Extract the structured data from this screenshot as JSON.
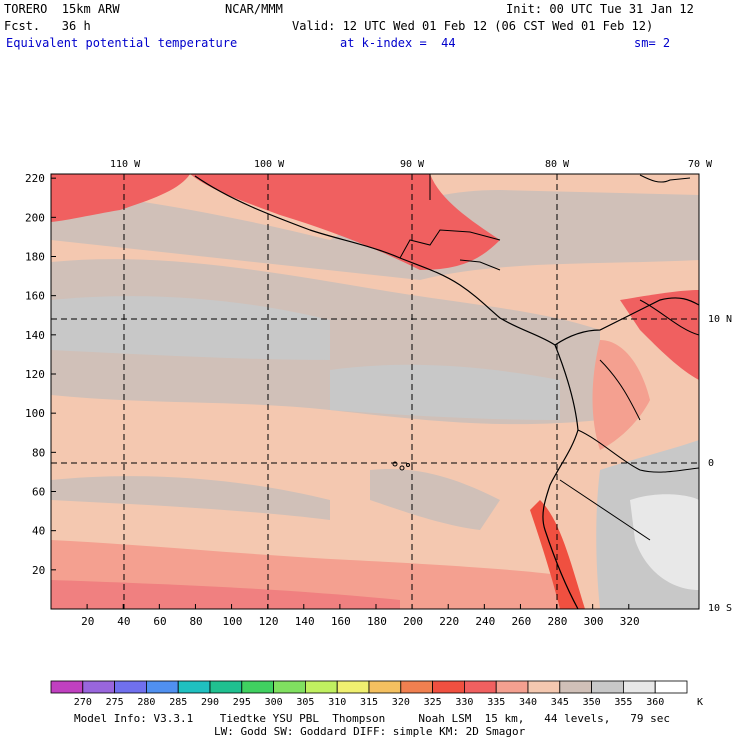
{
  "header": {
    "model": "TORERO  15km ARW",
    "org": "NCAR/MMM",
    "init": "Init: 00 UTC Tue 31 Jan 12",
    "fcst": "Fcst.   36 h",
    "valid": "Valid: 12 UTC Wed 01 Feb 12 (06 CST Wed 01 Feb 12)",
    "field": "Equivalent potential temperature",
    "level": "at k-index =  44",
    "smooth": "sm= 2"
  },
  "map": {
    "lon_labels": [
      "110 W",
      "100 W",
      "90 W",
      "80 W",
      "70 W"
    ],
    "lat_labels": [
      "10 N",
      "0",
      "10 S"
    ],
    "x_ticks": [
      "20",
      "40",
      "60",
      "80",
      "100",
      "120",
      "140",
      "160",
      "180",
      "200",
      "220",
      "240",
      "260",
      "280",
      "300",
      "320"
    ],
    "y_ticks": [
      "20",
      "40",
      "60",
      "80",
      "100",
      "120",
      "140",
      "160",
      "180",
      "200",
      "220"
    ]
  },
  "colorbar": {
    "labels": [
      "270",
      "275",
      "280",
      "285",
      "290",
      "295",
      "300",
      "305",
      "310",
      "315",
      "320",
      "325",
      "330",
      "335",
      "340",
      "345",
      "350",
      "355",
      "360"
    ],
    "unit": "K",
    "colors": [
      "#c040c0",
      "#9966dd",
      "#7070ee",
      "#5090f0",
      "#20c0c0",
      "#20c090",
      "#40d060",
      "#80e060",
      "#c0f060",
      "#f0f070",
      "#f4c060",
      "#f08050",
      "#f05040",
      "#f06060",
      "#f4a090",
      "#f4c8b0",
      "#d0c0b8",
      "#c8c8c8",
      "#e8e8e8",
      "#ffffff"
    ]
  },
  "footer": {
    "line1": "Model Info: V3.3.1    Tiedtke YSU PBL  Thompson     Noah LSM  15 km,   44 levels,   79 sec",
    "line2": "LW: Godd SW: Goddard DIFF: simple KM: 2D Smagor"
  }
}
